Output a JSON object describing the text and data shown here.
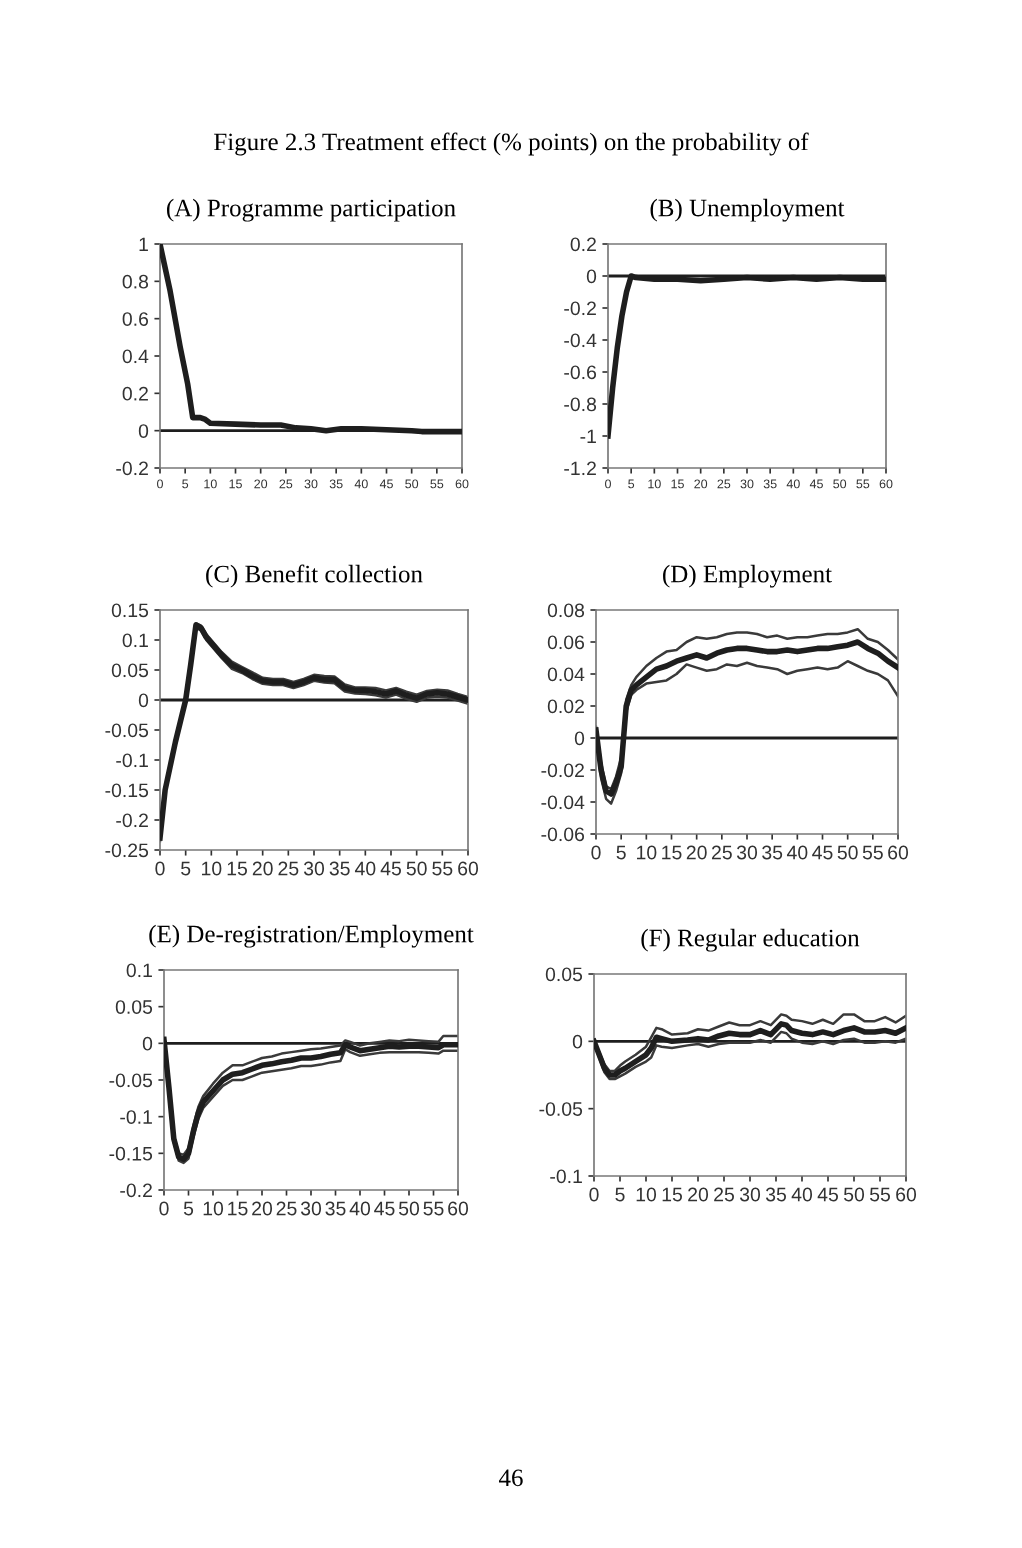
{
  "chart_data": [
    {
      "type": "line",
      "title": "(A) Programme participation",
      "annotations": [
        "Figure 2.3 Treatment effect (% points) on the probability of"
      ],
      "x": [
        0,
        2,
        4,
        5.5,
        6.5,
        8,
        9,
        10,
        15,
        20,
        24,
        27,
        30,
        33,
        36,
        40,
        45,
        50,
        52,
        60
      ],
      "series": [
        {
          "color": "#1e1e1e",
          "values": [
            1.0,
            0.75,
            0.45,
            0.25,
            0.07,
            0.07,
            0.06,
            0.04,
            0.035,
            0.03,
            0.03,
            0.015,
            0.01,
            0.0,
            0.01,
            0.01,
            0.005,
            0.0,
            -0.005,
            -0.005
          ]
        }
      ],
      "xlim": [
        0,
        60
      ],
      "xticks": [
        0,
        5,
        10,
        15,
        20,
        25,
        30,
        35,
        40,
        45,
        50,
        55,
        60
      ],
      "ylim": [
        -0.2,
        1
      ],
      "yticks": [
        -0.2,
        0,
        0.2,
        0.4,
        0.6,
        0.8,
        1
      ],
      "ref_lines": [
        {
          "axis": "y",
          "value": 0,
          "color": "#1e1e1e"
        }
      ],
      "grid": false,
      "legend": false
    },
    {
      "type": "line",
      "title": "(B) Unemployment",
      "x": [
        0,
        1,
        2,
        3,
        4,
        5,
        6,
        10,
        15,
        20,
        25,
        30,
        35,
        40,
        45,
        50,
        55,
        60
      ],
      "series": [
        {
          "color": "#1e1e1e",
          "values": [
            -1.0,
            -0.7,
            -0.45,
            -0.25,
            -0.1,
            0.0,
            -0.01,
            -0.02,
            -0.02,
            -0.03,
            -0.02,
            -0.01,
            -0.02,
            -0.01,
            -0.02,
            -0.01,
            -0.02,
            -0.02
          ]
        }
      ],
      "xlim": [
        0,
        60
      ],
      "xticks": [
        0,
        5,
        10,
        15,
        20,
        25,
        30,
        35,
        40,
        45,
        50,
        55,
        60
      ],
      "ylim": [
        -1.2,
        0.2
      ],
      "yticks": [
        -1.2,
        -1,
        -0.8,
        -0.6,
        -0.4,
        -0.2,
        0,
        0.2
      ],
      "ref_lines": [
        {
          "axis": "y",
          "value": 0,
          "color": "#1e1e1e"
        }
      ],
      "grid": false,
      "legend": false
    },
    {
      "type": "line",
      "title": "(C) Benefit collection",
      "x": [
        0,
        1,
        2,
        3,
        4,
        5,
        6,
        7,
        8,
        9,
        10,
        12,
        14,
        16,
        18,
        20,
        22,
        24,
        26,
        28,
        30,
        32,
        34,
        36,
        38,
        40,
        42,
        44,
        46,
        48,
        50,
        52,
        54,
        56,
        58,
        60
      ],
      "series": [
        {
          "color": "#1e1e1e",
          "values": [
            -0.23,
            -0.15,
            -0.11,
            -0.07,
            -0.035,
            0.0,
            0.06,
            0.125,
            0.12,
            0.105,
            0.095,
            0.075,
            0.058,
            0.05,
            0.04,
            0.032,
            0.03,
            0.03,
            0.025,
            0.03,
            0.037,
            0.034,
            0.034,
            0.02,
            0.016,
            0.016,
            0.014,
            0.01,
            0.015,
            0.008,
            0.003,
            0.01,
            0.012,
            0.01,
            0.005,
            0.0
          ]
        },
        {
          "color": "#3a3a3a",
          "values": [
            -0.225,
            -0.145,
            -0.105,
            -0.065,
            -0.03,
            0.005,
            0.065,
            0.128,
            0.124,
            0.11,
            0.1,
            0.08,
            0.064,
            0.055,
            0.046,
            0.037,
            0.035,
            0.035,
            0.03,
            0.035,
            0.042,
            0.04,
            0.039,
            0.026,
            0.021,
            0.021,
            0.02,
            0.016,
            0.02,
            0.014,
            0.009,
            0.015,
            0.017,
            0.016,
            0.01,
            0.005
          ]
        },
        {
          "color": "#3a3a3a",
          "values": [
            -0.235,
            -0.155,
            -0.115,
            -0.075,
            -0.04,
            -0.005,
            0.055,
            0.12,
            0.116,
            0.1,
            0.09,
            0.07,
            0.052,
            0.045,
            0.035,
            0.027,
            0.025,
            0.025,
            0.02,
            0.025,
            0.032,
            0.029,
            0.028,
            0.014,
            0.011,
            0.01,
            0.008,
            0.004,
            0.009,
            0.002,
            -0.003,
            0.004,
            0.006,
            0.004,
            -0.001,
            -0.006
          ]
        }
      ],
      "xlim": [
        0,
        60
      ],
      "xticks": [
        0,
        5,
        10,
        15,
        20,
        25,
        30,
        35,
        40,
        45,
        50,
        55,
        60
      ],
      "ylim": [
        -0.25,
        0.15
      ],
      "yticks": [
        -0.25,
        -0.2,
        -0.15,
        -0.1,
        -0.05,
        0,
        0.05,
        0.1,
        0.15
      ],
      "ref_lines": [
        {
          "axis": "y",
          "value": 0,
          "color": "#1e1e1e"
        }
      ],
      "grid": false,
      "legend": false
    },
    {
      "type": "line",
      "title": "(D) Employment",
      "x": [
        0,
        1,
        2,
        3,
        4,
        5,
        6,
        7,
        8,
        10,
        12,
        14,
        16,
        18,
        20,
        22,
        24,
        26,
        28,
        30,
        32,
        34,
        36,
        38,
        40,
        42,
        44,
        46,
        48,
        50,
        52,
        54,
        56,
        58,
        60
      ],
      "series": [
        {
          "color": "#1e1e1e",
          "values": [
            0.005,
            -0.02,
            -0.033,
            -0.035,
            -0.028,
            -0.018,
            0.02,
            0.03,
            0.033,
            0.038,
            0.043,
            0.045,
            0.048,
            0.05,
            0.052,
            0.05,
            0.053,
            0.055,
            0.056,
            0.056,
            0.055,
            0.054,
            0.054,
            0.055,
            0.054,
            0.055,
            0.056,
            0.056,
            0.057,
            0.058,
            0.06,
            0.056,
            0.053,
            0.048,
            0.044
          ]
        },
        {
          "color": "#3a3a3a",
          "values": [
            0.007,
            -0.015,
            -0.03,
            -0.032,
            -0.024,
            -0.012,
            0.024,
            0.033,
            0.038,
            0.045,
            0.05,
            0.054,
            0.055,
            0.06,
            0.063,
            0.062,
            0.063,
            0.065,
            0.066,
            0.066,
            0.065,
            0.063,
            0.064,
            0.062,
            0.063,
            0.063,
            0.064,
            0.065,
            0.065,
            0.066,
            0.068,
            0.062,
            0.06,
            0.055,
            0.049
          ]
        },
        {
          "color": "#3a3a3a",
          "values": [
            0.003,
            -0.025,
            -0.038,
            -0.041,
            -0.033,
            -0.022,
            0.016,
            0.027,
            0.03,
            0.034,
            0.035,
            0.036,
            0.04,
            0.046,
            0.044,
            0.042,
            0.043,
            0.046,
            0.045,
            0.047,
            0.045,
            0.044,
            0.043,
            0.04,
            0.042,
            0.043,
            0.044,
            0.043,
            0.044,
            0.048,
            0.045,
            0.042,
            0.04,
            0.036,
            0.026
          ]
        }
      ],
      "xlim": [
        0,
        60
      ],
      "xticks": [
        0,
        5,
        10,
        15,
        20,
        25,
        30,
        35,
        40,
        45,
        50,
        55,
        60
      ],
      "ylim": [
        -0.06,
        0.08
      ],
      "yticks": [
        -0.06,
        -0.04,
        -0.02,
        0,
        0.02,
        0.04,
        0.06,
        0.08
      ],
      "ref_lines": [
        {
          "axis": "y",
          "value": 0,
          "color": "#1e1e1e"
        }
      ],
      "grid": false,
      "legend": false
    },
    {
      "type": "line",
      "title": "(E) De-registration/Employment",
      "x": [
        0,
        1,
        2,
        3,
        4,
        5,
        6,
        7,
        8,
        10,
        12,
        14,
        16,
        18,
        20,
        22,
        24,
        26,
        28,
        30,
        32,
        34,
        36,
        37,
        38,
        40,
        42,
        44,
        46,
        48,
        50,
        52,
        54,
        56,
        57,
        60
      ],
      "series": [
        {
          "color": "#1e1e1e",
          "values": [
            0.005,
            -0.06,
            -0.13,
            -0.155,
            -0.158,
            -0.15,
            -0.12,
            -0.095,
            -0.08,
            -0.065,
            -0.05,
            -0.042,
            -0.04,
            -0.035,
            -0.03,
            -0.028,
            -0.025,
            -0.023,
            -0.02,
            -0.02,
            -0.018,
            -0.015,
            -0.013,
            -0.002,
            -0.005,
            -0.01,
            -0.008,
            -0.006,
            -0.004,
            -0.005,
            -0.004,
            -0.004,
            -0.005,
            -0.006,
            -0.002,
            -0.002
          ]
        },
        {
          "color": "#3a3a3a",
          "values": [
            0.008,
            -0.055,
            -0.125,
            -0.15,
            -0.152,
            -0.143,
            -0.112,
            -0.087,
            -0.072,
            -0.055,
            -0.04,
            -0.03,
            -0.03,
            -0.025,
            -0.02,
            -0.018,
            -0.014,
            -0.012,
            -0.01,
            -0.008,
            -0.007,
            -0.005,
            -0.003,
            0.004,
            0.002,
            -0.003,
            0.0,
            0.002,
            0.004,
            0.003,
            0.005,
            0.004,
            0.003,
            0.002,
            0.01,
            0.01
          ]
        },
        {
          "color": "#3a3a3a",
          "values": [
            0.002,
            -0.065,
            -0.135,
            -0.16,
            -0.163,
            -0.157,
            -0.128,
            -0.103,
            -0.088,
            -0.073,
            -0.058,
            -0.05,
            -0.05,
            -0.045,
            -0.04,
            -0.038,
            -0.036,
            -0.034,
            -0.031,
            -0.031,
            -0.029,
            -0.026,
            -0.024,
            -0.008,
            -0.012,
            -0.017,
            -0.015,
            -0.013,
            -0.012,
            -0.012,
            -0.012,
            -0.012,
            -0.013,
            -0.014,
            -0.01,
            -0.01
          ]
        }
      ],
      "xlim": [
        0,
        60
      ],
      "xticks": [
        0,
        5,
        10,
        15,
        20,
        25,
        30,
        35,
        40,
        45,
        50,
        55,
        60
      ],
      "ylim": [
        -0.2,
        0.1
      ],
      "yticks": [
        -0.2,
        -0.15,
        -0.1,
        -0.05,
        0,
        0.05,
        0.1
      ],
      "ref_lines": [
        {
          "axis": "y",
          "value": 0,
          "color": "#1e1e1e"
        }
      ],
      "grid": false,
      "legend": false
    },
    {
      "type": "line",
      "title": "(F) Regular education",
      "annotations": [
        "46"
      ],
      "x": [
        0,
        1,
        2,
        3,
        4,
        5,
        6,
        8,
        10,
        11,
        12,
        13,
        15,
        18,
        20,
        22,
        24,
        26,
        28,
        30,
        32,
        34,
        36,
        37,
        38,
        40,
        42,
        44,
        46,
        48,
        50,
        52,
        54,
        56,
        58,
        60
      ],
      "series": [
        {
          "color": "#1e1e1e",
          "values": [
            0.0,
            -0.01,
            -0.02,
            -0.025,
            -0.025,
            -0.022,
            -0.02,
            -0.015,
            -0.01,
            -0.005,
            0.003,
            0.002,
            0.0,
            0.001,
            0.002,
            0.001,
            0.004,
            0.006,
            0.005,
            0.005,
            0.008,
            0.005,
            0.013,
            0.012,
            0.008,
            0.006,
            0.005,
            0.007,
            0.005,
            0.008,
            0.01,
            0.007,
            0.007,
            0.008,
            0.006,
            0.01
          ]
        },
        {
          "color": "#3a3a3a",
          "values": [
            0.0,
            -0.008,
            -0.017,
            -0.022,
            -0.022,
            -0.018,
            -0.015,
            -0.01,
            -0.004,
            0.003,
            0.01,
            0.009,
            0.005,
            0.006,
            0.009,
            0.008,
            0.011,
            0.014,
            0.012,
            0.012,
            0.015,
            0.012,
            0.02,
            0.019,
            0.016,
            0.015,
            0.013,
            0.016,
            0.013,
            0.02,
            0.02,
            0.015,
            0.015,
            0.018,
            0.014,
            0.019
          ]
        },
        {
          "color": "#3a3a3a",
          "values": [
            0.0,
            -0.012,
            -0.023,
            -0.028,
            -0.028,
            -0.026,
            -0.024,
            -0.019,
            -0.015,
            -0.012,
            -0.003,
            -0.004,
            -0.005,
            -0.003,
            -0.002,
            -0.004,
            -0.002,
            -0.001,
            -0.001,
            -0.001,
            0.001,
            -0.001,
            0.007,
            0.006,
            0.002,
            -0.001,
            -0.002,
            0.0,
            -0.002,
            0.001,
            0.002,
            -0.001,
            -0.001,
            0.0,
            -0.001,
            0.002
          ]
        }
      ],
      "xlim": [
        0,
        60
      ],
      "xticks": [
        0,
        5,
        10,
        15,
        20,
        25,
        30,
        35,
        40,
        45,
        50,
        55,
        60
      ],
      "ylim": [
        -0.1,
        0.05
      ],
      "yticks": [
        -0.1,
        -0.05,
        0,
        0.05
      ],
      "ref_lines": [
        {
          "axis": "y",
          "value": 0,
          "color": "#1e1e1e"
        }
      ],
      "grid": false,
      "legend": false
    }
  ]
}
